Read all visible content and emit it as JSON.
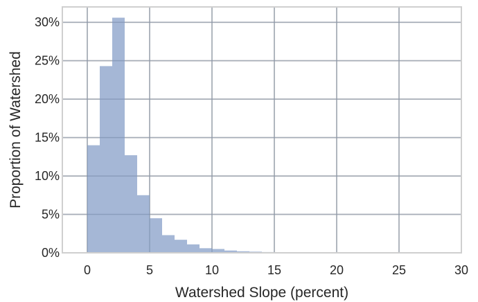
{
  "chart_data": {
    "type": "bar",
    "xlabel": "Watershed Slope (percent)",
    "ylabel": "Proportion of Watershed",
    "xlim": [
      -2,
      30
    ],
    "ylim": [
      0,
      0.32
    ],
    "xticks": [
      0,
      5,
      10,
      15,
      20,
      25,
      30
    ],
    "xtick_labels": [
      "0",
      "5",
      "10",
      "15",
      "20",
      "25",
      "30"
    ],
    "yticks": [
      0,
      0.05,
      0.1,
      0.15,
      0.2,
      0.25,
      0.3
    ],
    "ytick_labels": [
      "0%",
      "5%",
      "10%",
      "15%",
      "20%",
      "25%",
      "30%"
    ],
    "grid": true,
    "bar_color": "#A5B7D6",
    "bin_width": 1,
    "bins": [
      {
        "x0": 0,
        "x1": 1,
        "value": 0.14
      },
      {
        "x0": 1,
        "x1": 2,
        "value": 0.243
      },
      {
        "x0": 2,
        "x1": 3,
        "value": 0.306
      },
      {
        "x0": 3,
        "x1": 4,
        "value": 0.127
      },
      {
        "x0": 4,
        "x1": 5,
        "value": 0.075
      },
      {
        "x0": 5,
        "x1": 6,
        "value": 0.045
      },
      {
        "x0": 6,
        "x1": 7,
        "value": 0.023
      },
      {
        "x0": 7,
        "x1": 8,
        "value": 0.017
      },
      {
        "x0": 8,
        "x1": 9,
        "value": 0.011
      },
      {
        "x0": 9,
        "x1": 10,
        "value": 0.006
      },
      {
        "x0": 10,
        "x1": 11,
        "value": 0.005
      },
      {
        "x0": 11,
        "x1": 12,
        "value": 0.003
      },
      {
        "x0": 12,
        "x1": 13,
        "value": 0.002
      },
      {
        "x0": 13,
        "x1": 14,
        "value": 0.0015
      },
      {
        "x0": 14,
        "x1": 15,
        "value": 0.001
      },
      {
        "x0": 15,
        "x1": 16,
        "value": 0.0008
      },
      {
        "x0": 16,
        "x1": 17,
        "value": 0.0006
      },
      {
        "x0": 17,
        "x1": 18,
        "value": 0.0005
      },
      {
        "x0": 18,
        "x1": 19,
        "value": 0.0004
      },
      {
        "x0": 19,
        "x1": 20,
        "value": 0.0003
      },
      {
        "x0": 20,
        "x1": 21,
        "value": 0.0003
      },
      {
        "x0": 21,
        "x1": 22,
        "value": 0.0002
      },
      {
        "x0": 22,
        "x1": 23,
        "value": 0.0002
      },
      {
        "x0": 23,
        "x1": 24,
        "value": 0.0002
      },
      {
        "x0": 24,
        "x1": 25,
        "value": 0.0001
      },
      {
        "x0": 25,
        "x1": 26,
        "value": 0.0001
      },
      {
        "x0": 26,
        "x1": 27,
        "value": 0.0001
      },
      {
        "x0": 27,
        "x1": 28,
        "value": 0.0001
      },
      {
        "x0": 28,
        "x1": 29,
        "value": 0.0001
      }
    ]
  }
}
